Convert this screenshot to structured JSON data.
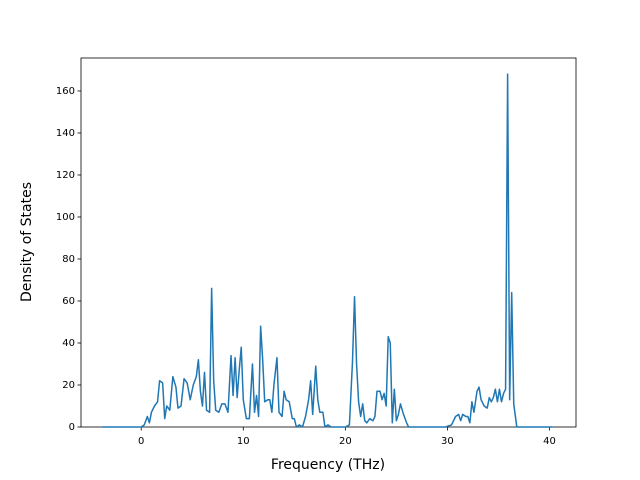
{
  "chart_data": {
    "type": "line",
    "x_label": "Frequency (THz)",
    "y_label": "Density of States",
    "xlim": [
      -5.9,
      42.6
    ],
    "ylim": [
      0,
      175.7
    ],
    "xticks": [
      0,
      10,
      20,
      30,
      40
    ],
    "yticks": [
      0,
      20,
      40,
      60,
      80,
      100,
      120,
      140,
      160
    ],
    "grid": false,
    "x": [
      -3.8,
      0,
      0.3,
      0.6,
      0.8,
      1.0,
      1.3,
      1.6,
      1.8,
      2.1,
      2.3,
      2.5,
      2.8,
      3.1,
      3.4,
      3.6,
      3.9,
      4.2,
      4.5,
      4.8,
      5.1,
      5.4,
      5.6,
      5.8,
      6.0,
      6.2,
      6.4,
      6.7,
      6.9,
      7.1,
      7.3,
      7.6,
      7.9,
      8.2,
      8.5,
      8.8,
      9.0,
      9.2,
      9.4,
      9.6,
      9.8,
      10.0,
      10.3,
      10.6,
      10.9,
      11.1,
      11.3,
      11.5,
      11.7,
      11.9,
      12.1,
      12.4,
      12.6,
      12.8,
      13.0,
      13.3,
      13.5,
      13.8,
      14.0,
      14.2,
      14.5,
      14.8,
      15.0,
      15.2,
      15.5,
      15.8,
      16.1,
      16.4,
      16.6,
      16.8,
      17.1,
      17.3,
      17.5,
      17.8,
      18.0,
      18.3,
      18.6,
      20.0,
      20.4,
      20.7,
      20.9,
      21.1,
      21.3,
      21.5,
      21.7,
      21.9,
      22.1,
      22.4,
      22.7,
      22.9,
      23.1,
      23.4,
      23.6,
      23.8,
      24.0,
      24.2,
      24.4,
      24.6,
      24.8,
      25.0,
      25.2,
      25.4,
      25.7,
      26.0,
      26.2,
      29.8,
      30.4,
      30.8,
      31.1,
      31.3,
      31.5,
      31.8,
      32.0,
      32.2,
      32.4,
      32.6,
      32.9,
      33.1,
      33.3,
      33.6,
      33.9,
      34.1,
      34.3,
      34.5,
      34.7,
      34.9,
      35.1,
      35.3,
      35.5,
      35.7,
      35.9,
      36.1,
      36.3,
      36.5,
      36.8,
      40.3
    ],
    "series": [
      {
        "name": "DOS",
        "color": "#1f77b4",
        "values": [
          0,
          0,
          1,
          5,
          2,
          7,
          10,
          12,
          22,
          21,
          4,
          10,
          8,
          24,
          19,
          9,
          10,
          23,
          21,
          13,
          20,
          24,
          32,
          17,
          10,
          26,
          8,
          7,
          66,
          22,
          8,
          7,
          11,
          11,
          7,
          34,
          15,
          33,
          14,
          27,
          38,
          13,
          4,
          4,
          30,
          7,
          15,
          5,
          48,
          32,
          12,
          13,
          13,
          7,
          20,
          33,
          7,
          5,
          17,
          13,
          12,
          4,
          4,
          0,
          1,
          0,
          5,
          13,
          22,
          6,
          29,
          13,
          7,
          7,
          0,
          1,
          0,
          0,
          1,
          31,
          62,
          30,
          12,
          5,
          11,
          3,
          2,
          4,
          3,
          5,
          17,
          17,
          13,
          16,
          10,
          43,
          40,
          2,
          18,
          3,
          6,
          11,
          6,
          2,
          0,
          0,
          1,
          5,
          6,
          3,
          6,
          5,
          5,
          2,
          12,
          7,
          17,
          19,
          13,
          10,
          9,
          14,
          12,
          14,
          18,
          12,
          18,
          12,
          16,
          18,
          168,
          13,
          64,
          11,
          0,
          0
        ]
      }
    ]
  }
}
